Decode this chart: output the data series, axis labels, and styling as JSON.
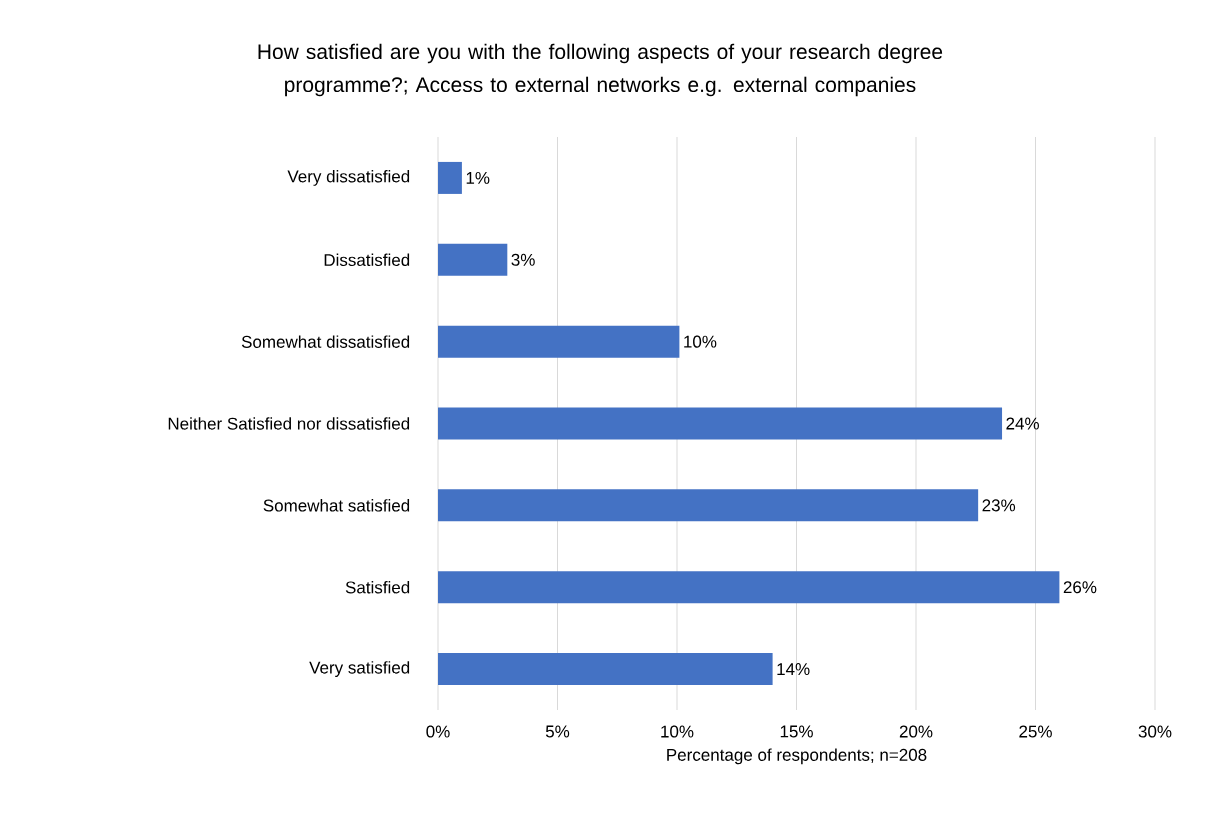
{
  "chart_data": {
    "type": "bar",
    "orientation": "horizontal",
    "title": "How satisfied are you with the following aspects of your research degree programme?; Access to external networks e.g. external companies",
    "xlabel": "Percentage of respondents; n=208",
    "categories": [
      "Very dissatisfied",
      "Dissatisfied",
      "Somewhat dissatisfied",
      "Neither Satisfied nor dissatisfied",
      "Somewhat satisfied",
      "Satisfied",
      "Very satisfied"
    ],
    "values": [
      1.0,
      2.9,
      10.1,
      23.6,
      22.6,
      26.0,
      14.0
    ],
    "value_labels": [
      "1%",
      "3%",
      "10%",
      "24%",
      "23%",
      "26%",
      "14%"
    ],
    "color": "#4472c4",
    "xlim": [
      0,
      30
    ],
    "xticks": [
      {
        "value": 0,
        "label": "0%"
      },
      {
        "value": 5,
        "label": "5%"
      },
      {
        "value": 10,
        "label": "10%"
      },
      {
        "value": 15,
        "label": "15%"
      },
      {
        "value": 20,
        "label": "20%"
      },
      {
        "value": 25,
        "label": "25%"
      },
      {
        "value": 30,
        "label": "30%"
      }
    ],
    "grid": "x"
  }
}
